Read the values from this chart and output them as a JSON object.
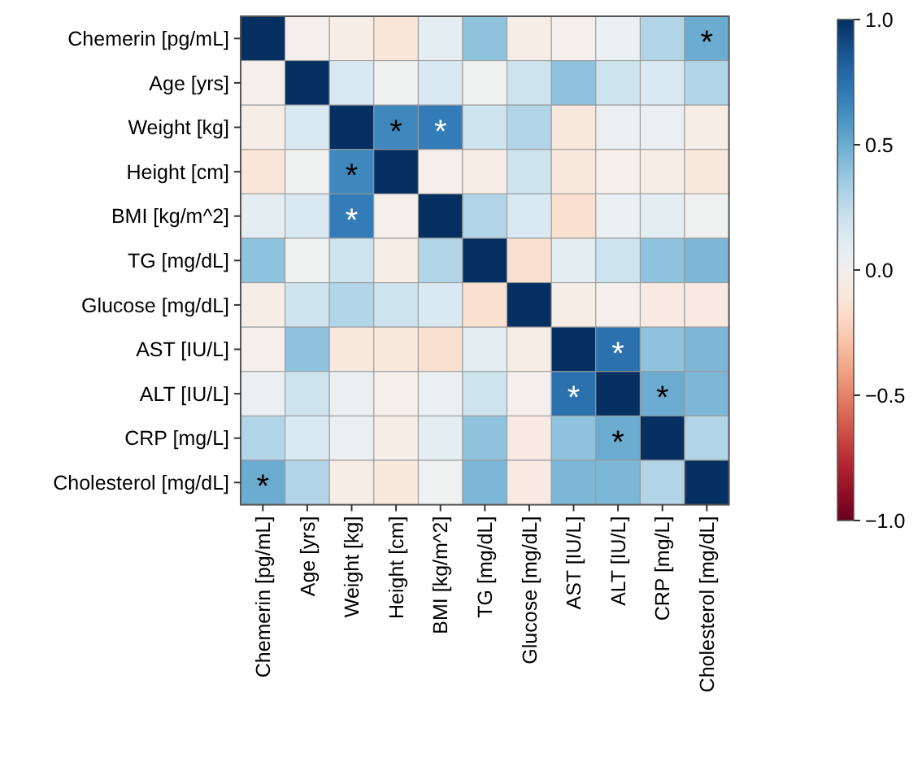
{
  "chart_data": {
    "type": "heatmap",
    "categories": [
      "Chemerin [pg/mL]",
      "Age [yrs]",
      "Weight [kg]",
      "Height [cm]",
      "BMI [kg/m^2]",
      "TG [mg/dL]",
      "Glucose [mg/dL]",
      "AST [IU/L]",
      "ALT [IU/L]",
      "CRP [mg/L]",
      "Cholesterol [mg/dL]"
    ],
    "y_categories": [
      "Chemerin [pg/mL]",
      "Age [yrs]",
      "Weight [kg]",
      "Height [cm]",
      "BMI [kg/m^2]",
      "TG [mg/dL]",
      "Glucose [mg/dL]",
      "AST [IU/L]",
      "ALT [IU/L]",
      "CRP [mg/L]",
      "Cholesterol [mg/dL]"
    ],
    "cells": [
      [
        1,
        -0.02,
        -0.05,
        -0.12,
        0.1,
        0.4,
        -0.05,
        -0.02,
        0.05,
        0.3,
        0.5
      ],
      [
        -0.02,
        1,
        0.15,
        0.02,
        0.15,
        0.02,
        0.2,
        0.4,
        0.2,
        0.15,
        0.3
      ],
      [
        -0.05,
        0.15,
        1,
        0.65,
        0.7,
        0.2,
        0.3,
        -0.1,
        0.05,
        0.05,
        -0.05
      ],
      [
        -0.12,
        0.02,
        0.65,
        1,
        -0.03,
        -0.05,
        0.2,
        -0.1,
        -0.03,
        -0.05,
        -0.1
      ],
      [
        0.1,
        0.15,
        0.7,
        -0.03,
        1,
        0.3,
        0.15,
        -0.15,
        0.05,
        0.1,
        0.02
      ],
      [
        0.4,
        0.02,
        0.2,
        -0.05,
        0.3,
        1,
        -0.15,
        0.1,
        0.2,
        0.4,
        0.45
      ],
      [
        -0.05,
        0.2,
        0.3,
        0.2,
        0.15,
        -0.15,
        1,
        -0.05,
        -0.02,
        -0.08,
        -0.08
      ],
      [
        -0.02,
        0.4,
        -0.1,
        -0.1,
        -0.15,
        0.1,
        -0.05,
        1,
        0.75,
        0.4,
        0.45
      ],
      [
        0.05,
        0.2,
        0.05,
        -0.03,
        0.05,
        0.2,
        -0.02,
        0.75,
        1,
        0.5,
        0.45
      ],
      [
        0.3,
        0.15,
        0.05,
        -0.05,
        0.1,
        0.4,
        -0.08,
        0.4,
        0.5,
        1,
        0.3
      ],
      [
        0.5,
        0.3,
        -0.05,
        -0.1,
        0.02,
        0.45,
        -0.08,
        0.45,
        0.45,
        0.3,
        1
      ]
    ],
    "clim": [
      -1,
      1
    ],
    "cticks": [
      {
        "value": 1,
        "label": "1.0"
      },
      {
        "value": 0.5,
        "label": "0.5"
      },
      {
        "value": 0,
        "label": "0.0"
      },
      {
        "value": -0.5,
        "label": "−0.5"
      },
      {
        "value": -1,
        "label": "−1.0"
      }
    ],
    "cell_labels": [
      [
        null,
        null,
        null,
        null,
        null,
        null,
        null,
        null,
        null,
        null,
        "*"
      ],
      [
        null,
        null,
        null,
        null,
        null,
        null,
        null,
        null,
        null,
        null,
        null
      ],
      [
        null,
        null,
        null,
        "*",
        "*",
        null,
        null,
        null,
        null,
        null,
        null
      ],
      [
        null,
        null,
        "*",
        null,
        null,
        null,
        null,
        null,
        null,
        null,
        null
      ],
      [
        null,
        null,
        "*",
        null,
        null,
        null,
        null,
        null,
        null,
        null,
        null
      ],
      [
        null,
        null,
        null,
        null,
        null,
        null,
        null,
        null,
        null,
        null,
        null
      ],
      [
        null,
        null,
        null,
        null,
        null,
        null,
        null,
        null,
        null,
        null,
        null
      ],
      [
        null,
        null,
        null,
        null,
        null,
        null,
        null,
        null,
        "*",
        null,
        null
      ],
      [
        null,
        null,
        null,
        null,
        null,
        null,
        null,
        "*",
        null,
        "*",
        null
      ],
      [
        null,
        null,
        null,
        null,
        null,
        null,
        null,
        null,
        "*",
        null,
        null
      ],
      [
        "*",
        null,
        null,
        null,
        null,
        null,
        null,
        null,
        null,
        null,
        null
      ]
    ]
  }
}
